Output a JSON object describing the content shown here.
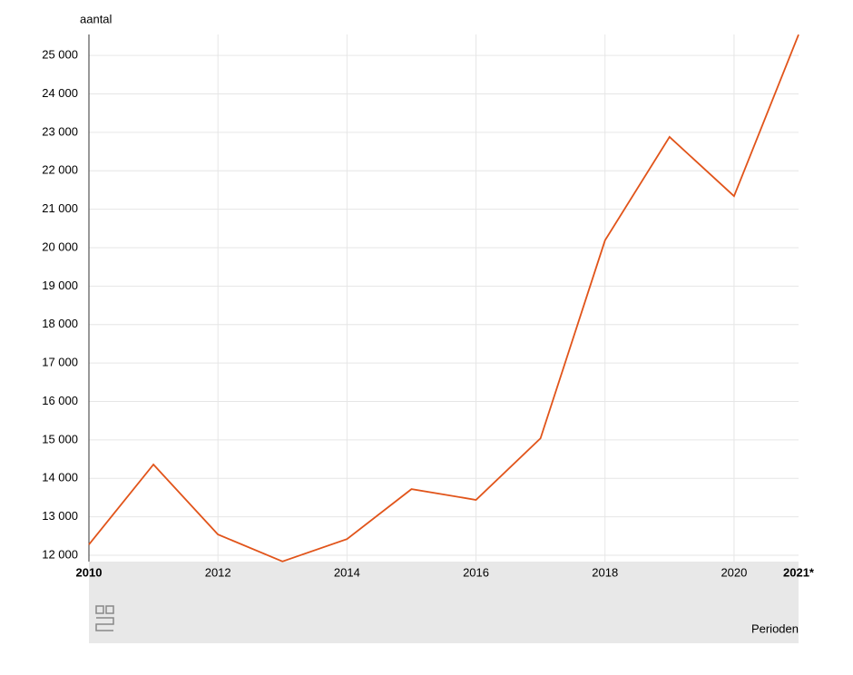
{
  "chart_data": {
    "type": "line",
    "y_label": "aantal",
    "x_label": "Perioden",
    "x": [
      2010,
      2011,
      2012,
      2013,
      2014,
      2015,
      2016,
      2017,
      2018,
      2019,
      2020,
      2021
    ],
    "values": [
      12280,
      14360,
      12540,
      11840,
      12420,
      13720,
      13440,
      15040,
      20190,
      22880,
      21340,
      25540
    ],
    "color": "#e1541a",
    "xlim": [
      2010,
      2021
    ],
    "xticks": [
      2010,
      2012,
      2014,
      2016,
      2018,
      2020,
      {
        "value": 2021,
        "label": "2021*"
      }
    ],
    "ylim": [
      11835,
      25545
    ],
    "yticks": [
      {
        "value": 12000,
        "label": "12 000"
      },
      {
        "value": 13000,
        "label": "13 000"
      },
      {
        "value": 14000,
        "label": "14 000"
      },
      {
        "value": 15000,
        "label": "15 000"
      },
      {
        "value": 16000,
        "label": "16 000"
      },
      {
        "value": 17000,
        "label": "17 000"
      },
      {
        "value": 18000,
        "label": "18 000"
      },
      {
        "value": 19000,
        "label": "19 000"
      },
      {
        "value": 20000,
        "label": "20 000"
      },
      {
        "value": 21000,
        "label": "21 000"
      },
      {
        "value": 22000,
        "label": "22 000"
      },
      {
        "value": 23000,
        "label": "23 000"
      },
      {
        "value": 24000,
        "label": "24 000"
      },
      {
        "value": 25000,
        "label": "25 000"
      }
    ],
    "grid": true
  }
}
